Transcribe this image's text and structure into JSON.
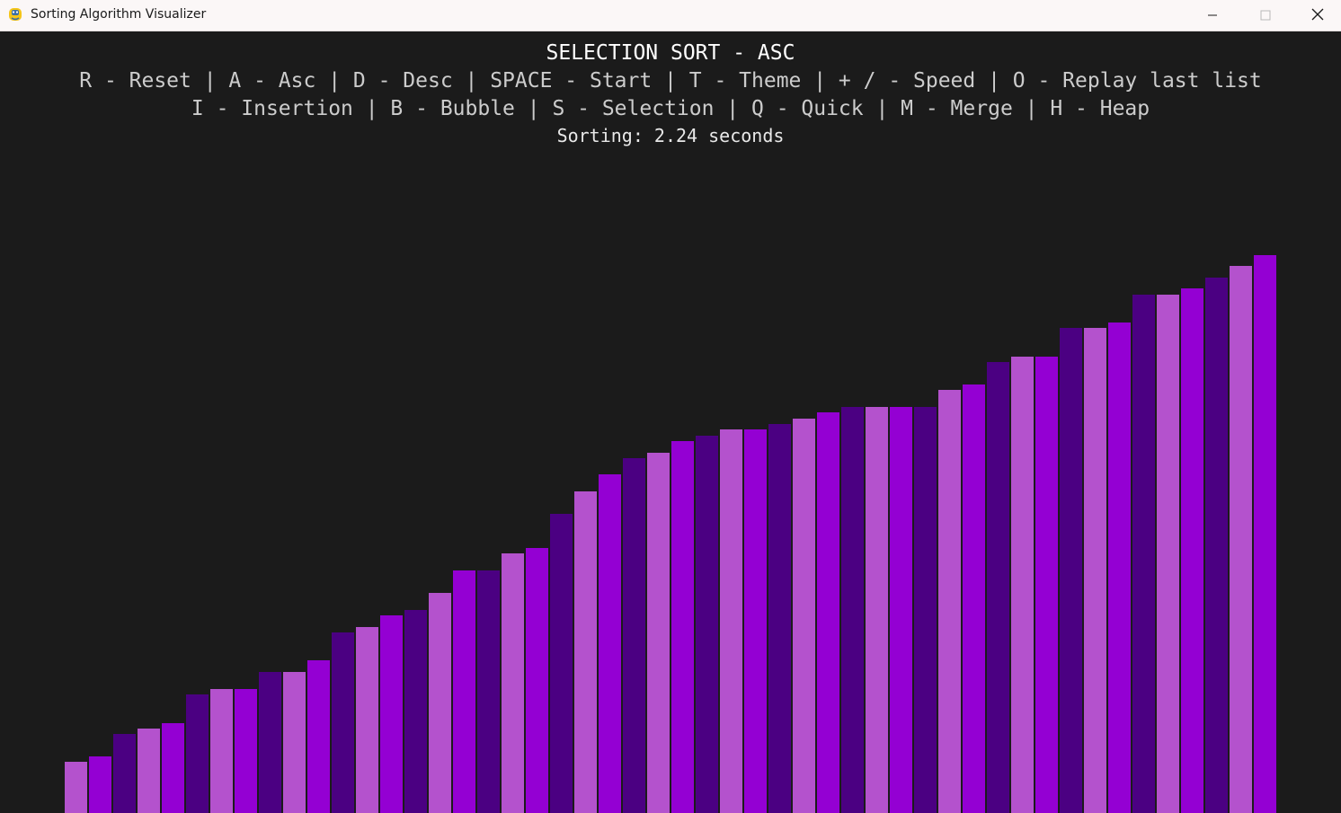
{
  "window": {
    "title": "Sorting Algorithm Visualizer",
    "icon": "python-snake-icon",
    "controls": {
      "minimize": "minimize-icon",
      "maximize": "maximize-icon",
      "close": "close-icon"
    }
  },
  "hud": {
    "title": "SELECTION SORT - ASC",
    "keys_line1": "R - Reset | A - Asc | D - Desc | SPACE - Start | T - Theme | + / - Speed | O - Replay last list",
    "keys_line2": "I - Insertion | B - Bubble | S - Selection | Q - Quick | M - Merge | H - Heap",
    "timer": "Sorting: 2.24 seconds"
  },
  "colors": {
    "background": "#1b1b1b",
    "bar_palette": [
      "#4b0082",
      "#b452cd",
      "#9400d3"
    ]
  },
  "bars": {
    "count": 50,
    "order": "ascending",
    "values": [
      57,
      63,
      88,
      94,
      100,
      132,
      138,
      138,
      157,
      157,
      170,
      201,
      207,
      220,
      226,
      245,
      270,
      270,
      289,
      295,
      333,
      358,
      377,
      395,
      401,
      414,
      420,
      427,
      427,
      433,
      439,
      446,
      452,
      452,
      452,
      452,
      471,
      477,
      502,
      508,
      508,
      540,
      540,
      546,
      577,
      577,
      584,
      596,
      609,
      621
    ],
    "color_index": [
      1,
      2,
      0,
      1,
      2,
      0,
      1,
      2,
      0,
      1,
      2,
      0,
      1,
      2,
      0,
      1,
      2,
      0,
      1,
      2,
      0,
      1,
      2,
      0,
      1,
      2,
      0,
      1,
      2,
      0,
      1,
      2,
      0,
      1,
      2,
      0,
      1,
      2,
      0,
      1,
      2,
      0,
      1,
      2,
      0,
      1,
      2,
      0,
      1,
      2
    ]
  }
}
